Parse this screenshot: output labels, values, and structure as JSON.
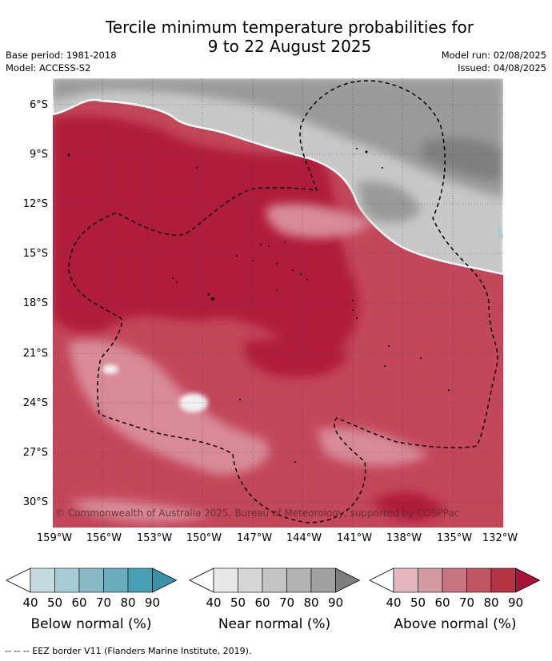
{
  "header": {
    "title_line1": "Tercile minimum temperature probabilities for",
    "title_line2": "9 to 22 August 2025",
    "base_period": "Base period: 1981-2018",
    "model": "Model: ACCESS-S2",
    "model_run": "Model run: 02/08/2025",
    "issued": "Issued: 04/08/2025"
  },
  "map": {
    "copyright": "© Commonwealth of Australia 2025, Bureau of Meteorology, supported by COSPPac",
    "lat_labels": [
      "6°S",
      "9°S",
      "12°S",
      "15°S",
      "18°S",
      "21°S",
      "24°S",
      "27°S",
      "30°S"
    ],
    "lon_labels": [
      "159°W",
      "156°W",
      "153°W",
      "150°W",
      "147°W",
      "144°W",
      "141°W",
      "138°W",
      "135°W",
      "132°W"
    ],
    "colors": {
      "above_high": "#b01a3a",
      "above_mid": "#c24458",
      "above_low": "#d88a98",
      "near_high": "#9a9a9a",
      "near_low": "#c8c8c8",
      "below_low": "#aecbd3"
    }
  },
  "colorbars": [
    {
      "title": "Below normal (%)",
      "ticks": [
        "40",
        "50",
        "60",
        "70",
        "80",
        "90"
      ],
      "colors": [
        "#c6dbe0",
        "#a8ccd5",
        "#8ab9c6",
        "#6cadbd",
        "#46a0b2",
        "#3a93a8"
      ]
    },
    {
      "title": "Near normal (%)",
      "ticks": [
        "40",
        "50",
        "60",
        "70",
        "80",
        "90"
      ],
      "colors": [
        "#e8e8e8",
        "#d6d6d6",
        "#c4c4c4",
        "#b2b2b2",
        "#a0a0a0",
        "#7e7e7e"
      ]
    },
    {
      "title": "Above normal (%)",
      "ticks": [
        "40",
        "50",
        "60",
        "70",
        "80",
        "90"
      ],
      "colors": [
        "#e2b7bf",
        "#d49aa4",
        "#c87583",
        "#c05664",
        "#b43345",
        "#a8133a"
      ]
    }
  ],
  "footer": "-- -- -- EEZ border V11 (Flanders Marine Institute, 2019)."
}
